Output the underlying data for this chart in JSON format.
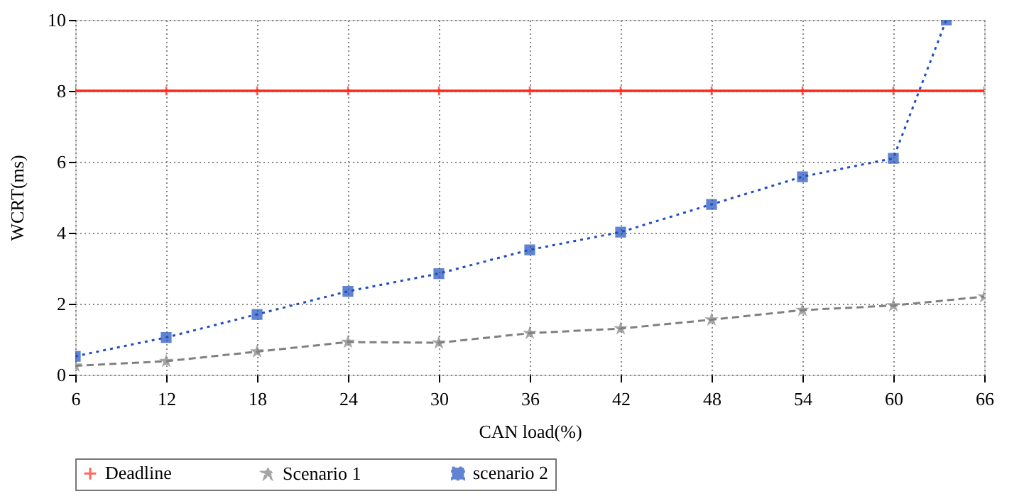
{
  "chart_data": {
    "type": "line",
    "xlabel": "CAN load(%)",
    "ylabel": "WCRT(ms)",
    "x": [
      6,
      12,
      18,
      24,
      30,
      36,
      42,
      48,
      54,
      60,
      66
    ],
    "xlim": [
      6,
      66
    ],
    "xticks": [
      6,
      12,
      18,
      24,
      30,
      36,
      42,
      48,
      54,
      60,
      66
    ],
    "ylim": [
      0,
      10
    ],
    "yticks": [
      0,
      2,
      4,
      6,
      8,
      10
    ],
    "grid": true,
    "legend": "bottom",
    "series": [
      {
        "name": "Deadline",
        "color": "#ff2a1a",
        "marker": "cross",
        "line_style": "solid",
        "values": [
          8,
          8,
          8,
          8,
          8,
          8,
          8,
          8,
          8,
          8,
          8
        ]
      },
      {
        "name": "Scenario 1",
        "color": "#808080",
        "marker": "star",
        "line_style": "dashed",
        "values": [
          0.25,
          0.38,
          0.65,
          0.92,
          0.9,
          1.17,
          1.3,
          1.55,
          1.82,
          1.95,
          2.2
        ]
      },
      {
        "name": "scenario 2",
        "color": "#1f4fbf",
        "marker": "square",
        "line_style": "dotted",
        "x": [
          6,
          12,
          18,
          24,
          30,
          36,
          42,
          48,
          54,
          60,
          63.5
        ],
        "values": [
          0.52,
          1.05,
          1.7,
          2.35,
          2.85,
          3.52,
          4.02,
          4.8,
          5.58,
          6.1,
          10
        ]
      }
    ]
  }
}
